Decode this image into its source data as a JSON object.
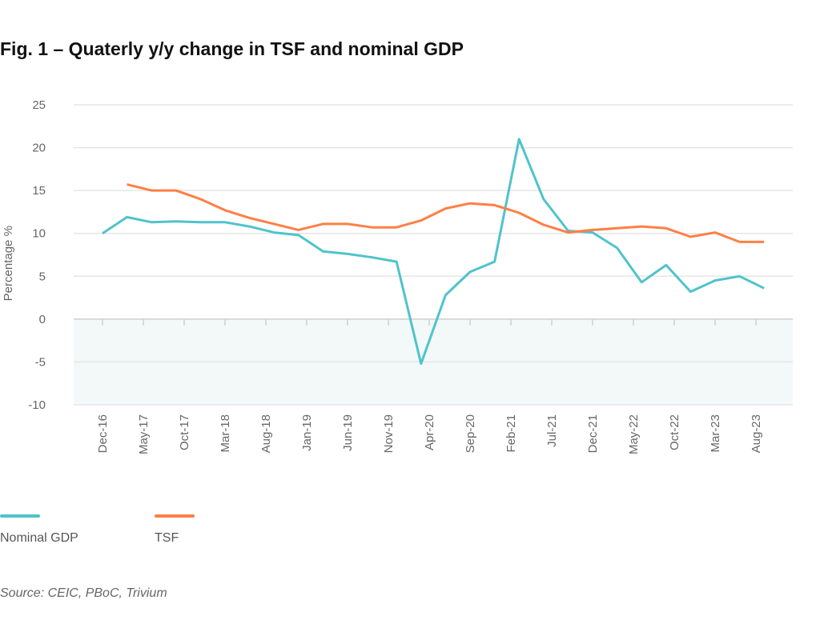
{
  "chart_data": {
    "type": "line",
    "title": "Fig. 1 – Quaterly y/y change in TSF and nominal GDP",
    "ylabel": "Percentage %",
    "xlabel": "",
    "ylim": [
      -10,
      25
    ],
    "yticks": [
      "25",
      "20",
      "15",
      "10",
      "5",
      "0",
      "-5",
      "-10"
    ],
    "xtick_labels": [
      "Dec-16",
      "May-17",
      "Oct-17",
      "Mar-18",
      "Aug-18",
      "Jan-19",
      "Jun-19",
      "Nov-19",
      "Apr-20",
      "Sep-20",
      "Feb-21",
      "Jul-21",
      "Dec-21",
      "May-22",
      "Oct-22",
      "Mar-23",
      "Aug-23"
    ],
    "x": [
      "Dec-16",
      "Mar-17",
      "Jun-17",
      "Sep-17",
      "Dec-17",
      "Mar-18",
      "Jun-18",
      "Sep-18",
      "Dec-18",
      "Mar-19",
      "Jun-19",
      "Sep-19",
      "Dec-19",
      "Mar-20",
      "Jun-20",
      "Sep-20",
      "Dec-20",
      "Mar-21",
      "Jun-21",
      "Sep-21",
      "Dec-21",
      "Mar-22",
      "Jun-22",
      "Sep-22",
      "Dec-22",
      "Mar-23",
      "Jun-23",
      "Sep-23"
    ],
    "grid": true,
    "legend": "bottom-left",
    "series": [
      {
        "name": "Nominal GDP",
        "color": "#4fc3cc",
        "values": [
          10.0,
          11.9,
          11.3,
          11.4,
          11.3,
          11.3,
          10.8,
          10.1,
          9.8,
          7.9,
          7.6,
          7.2,
          6.7,
          -5.2,
          2.8,
          5.5,
          6.7,
          21.0,
          14.0,
          10.3,
          10.1,
          8.3,
          4.3,
          6.3,
          3.2,
          4.5,
          5.0,
          3.6
        ]
      },
      {
        "name": "TSF",
        "color": "#ff7f45",
        "values": [
          null,
          15.7,
          15.0,
          15.0,
          14.0,
          12.7,
          11.8,
          11.1,
          10.4,
          11.1,
          11.1,
          10.7,
          10.7,
          11.5,
          12.9,
          13.5,
          13.3,
          12.4,
          11.0,
          10.1,
          10.4,
          10.6,
          10.8,
          10.6,
          9.6,
          10.1,
          9.0,
          9.0
        ]
      }
    ],
    "source": "Source: CEIC, PBoC, Trivium"
  }
}
